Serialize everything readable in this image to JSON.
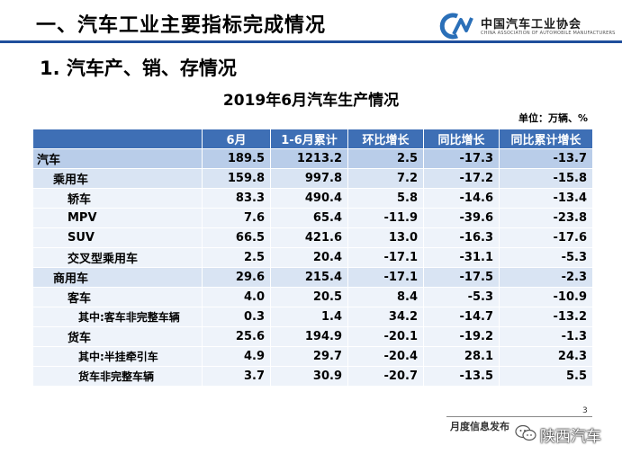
{
  "header": {
    "title": "一、汽车工业主要指标完成情况",
    "logo_name": "中国汽车工业协会",
    "logo_sub": "CHINA ASSOCIATION OF AUTOMOBILE MANUFACTURERS"
  },
  "section_title": "1. 汽车产、销、存情况",
  "table": {
    "title": "2019年6月汽车生产情况",
    "unit": "单位：万辆、%",
    "headers": [
      "",
      "6月",
      "1-6月累计",
      "环比增长",
      "同比增长",
      "同比累计增长"
    ],
    "rows": [
      {
        "label": "汽车",
        "m6": "189.5",
        "cum": "1213.2",
        "mom": "2.5",
        "yoy": "-17.3",
        "yoy_cum": "-13.7"
      },
      {
        "label": "乘用车",
        "m6": "159.8",
        "cum": "997.8",
        "mom": "7.2",
        "yoy": "-17.2",
        "yoy_cum": "-15.8"
      },
      {
        "label": "轿车",
        "m6": "83.3",
        "cum": "490.4",
        "mom": "5.8",
        "yoy": "-14.6",
        "yoy_cum": "-13.4"
      },
      {
        "label": "MPV",
        "m6": "7.6",
        "cum": "65.4",
        "mom": "-11.9",
        "yoy": "-39.6",
        "yoy_cum": "-23.8"
      },
      {
        "label": "SUV",
        "m6": "66.5",
        "cum": "421.6",
        "mom": "13.0",
        "yoy": "-16.3",
        "yoy_cum": "-17.6"
      },
      {
        "label": "交叉型乘用车",
        "m6": "2.5",
        "cum": "20.4",
        "mom": "-17.1",
        "yoy": "-31.1",
        "yoy_cum": "-5.3"
      },
      {
        "label": "商用车",
        "m6": "29.6",
        "cum": "215.4",
        "mom": "-17.1",
        "yoy": "-17.5",
        "yoy_cum": "-2.3"
      },
      {
        "label": "客车",
        "m6": "4.0",
        "cum": "20.5",
        "mom": "8.4",
        "yoy": "-5.3",
        "yoy_cum": "-10.9"
      },
      {
        "label": "其中:客车非完整车辆",
        "m6": "0.3",
        "cum": "1.4",
        "mom": "34.2",
        "yoy": "-14.7",
        "yoy_cum": "-13.2"
      },
      {
        "label": "货车",
        "m6": "25.6",
        "cum": "194.9",
        "mom": "-20.1",
        "yoy": "-19.2",
        "yoy_cum": "-1.3"
      },
      {
        "label": "其中:半挂牵引车",
        "m6": "4.9",
        "cum": "29.7",
        "mom": "-20.4",
        "yoy": "28.1",
        "yoy_cum": "24.3"
      },
      {
        "label": "货车非完整车辆",
        "m6": "3.7",
        "cum": "30.9",
        "mom": "-20.7",
        "yoy": "-13.5",
        "yoy_cum": "5.5"
      }
    ]
  },
  "footer": {
    "text": "月度信息发布",
    "page_number": "3",
    "watermark": "陕西汽车"
  },
  "colors": {
    "header_bg": "#3e6fb5",
    "row_total_bg": "#b9cde9",
    "row_group_bg": "#d9e4f3",
    "row_item_bg": "#eef3fa",
    "rule": "#1f4e9c"
  }
}
